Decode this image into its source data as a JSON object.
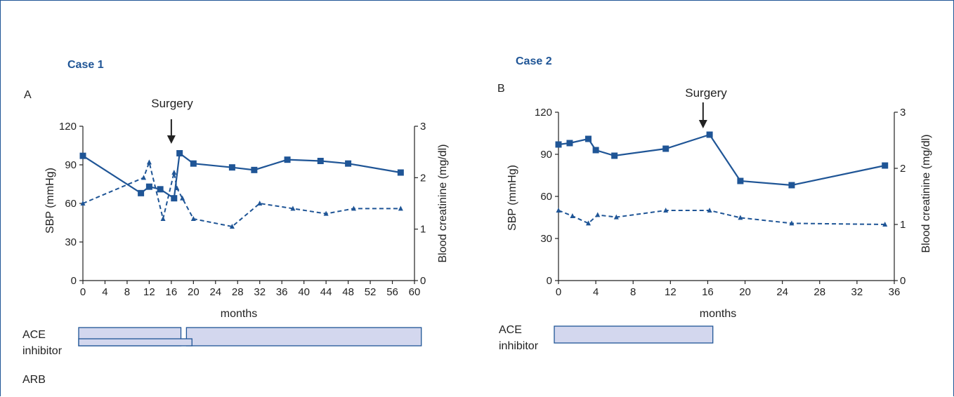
{
  "colors": {
    "series": "#1f5596",
    "bar_fill": "#d3d7ee",
    "bar_stroke": "#1f5596",
    "frame": "#1f5596",
    "axis": "#222222"
  },
  "chart_data": [
    {
      "type": "line",
      "case_title": "Case 1",
      "panel_label": "A",
      "xlabel": "months",
      "ylabel": "SBP (mmHg)",
      "y2label": "Blood creatinine (mg/dl)",
      "xlim": [
        0,
        60
      ],
      "ylim": [
        0,
        120
      ],
      "y2lim": [
        0,
        3
      ],
      "xticks": [
        0,
        4,
        8,
        12,
        16,
        20,
        24,
        28,
        32,
        36,
        40,
        44,
        48,
        52,
        56,
        60
      ],
      "yticks": [
        0,
        30,
        60,
        90,
        120
      ],
      "y2ticks": [
        0,
        1,
        2,
        3
      ],
      "series": [
        {
          "axis": "left",
          "style": "solid",
          "marker": "square",
          "x": [
            0,
            10.5,
            12,
            14,
            16.5,
            17.5,
            20,
            27,
            31,
            37,
            43,
            48,
            57.5
          ],
          "y": [
            97,
            68,
            73,
            71,
            64,
            99,
            91,
            88,
            86,
            94,
            93,
            91,
            84
          ]
        },
        {
          "axis": "right",
          "style": "dashed",
          "marker": "triangle",
          "x": [
            0,
            11,
            12,
            14.5,
            16.5,
            17,
            18,
            20,
            27,
            32,
            38,
            44,
            49,
            57.5
          ],
          "y": [
            1.5,
            2.0,
            2.3,
            1.2,
            2.1,
            1.8,
            1.6,
            1.2,
            1.05,
            1.5,
            1.4,
            1.3,
            1.4,
            1.4
          ]
        }
      ],
      "annotations": [
        {
          "text": "Surgery",
          "x": 16
        }
      ],
      "drugs": [
        {
          "label_lines": [
            "ACE",
            "inhibitor"
          ],
          "bars": [
            [
              0,
              18.5
            ],
            [
              19.5,
              62
            ]
          ]
        },
        {
          "label_lines": [
            "ARB"
          ],
          "bars": [
            [
              0,
              20.5
            ]
          ]
        }
      ]
    },
    {
      "type": "line",
      "case_title": "Case 2",
      "panel_label": "B",
      "xlabel": "months",
      "ylabel": "SBP (mmHg)",
      "y2label": "Blood creatinine (mg/dl)",
      "xlim": [
        0,
        36
      ],
      "ylim": [
        0,
        120
      ],
      "y2lim": [
        0,
        3
      ],
      "xticks": [
        0,
        4,
        8,
        12,
        16,
        20,
        24,
        28,
        32,
        36
      ],
      "yticks": [
        0,
        30,
        60,
        90,
        120
      ],
      "y2ticks": [
        0,
        1,
        2,
        3
      ],
      "series": [
        {
          "axis": "left",
          "style": "solid",
          "marker": "square",
          "x": [
            0,
            1.2,
            3.2,
            4,
            6,
            11.5,
            16.2,
            19.5,
            25,
            35
          ],
          "y": [
            97,
            98,
            101,
            93,
            89,
            94,
            104,
            71,
            68,
            82
          ]
        },
        {
          "axis": "right",
          "style": "dashed",
          "marker": "triangle",
          "x": [
            0,
            1.5,
            3.2,
            4.2,
            6.2,
            11.5,
            16.2,
            19.5,
            25,
            35
          ],
          "y": [
            1.25,
            1.15,
            1.02,
            1.17,
            1.13,
            1.25,
            1.25,
            1.12,
            1.02,
            1.0
          ]
        }
      ],
      "annotations": [
        {
          "text": "Surgery",
          "x": 15.5
        }
      ],
      "drugs": [
        {
          "label_lines": [
            "ACE",
            "inhibitor"
          ],
          "bars": [
            [
              0,
              17
            ]
          ]
        }
      ]
    }
  ]
}
